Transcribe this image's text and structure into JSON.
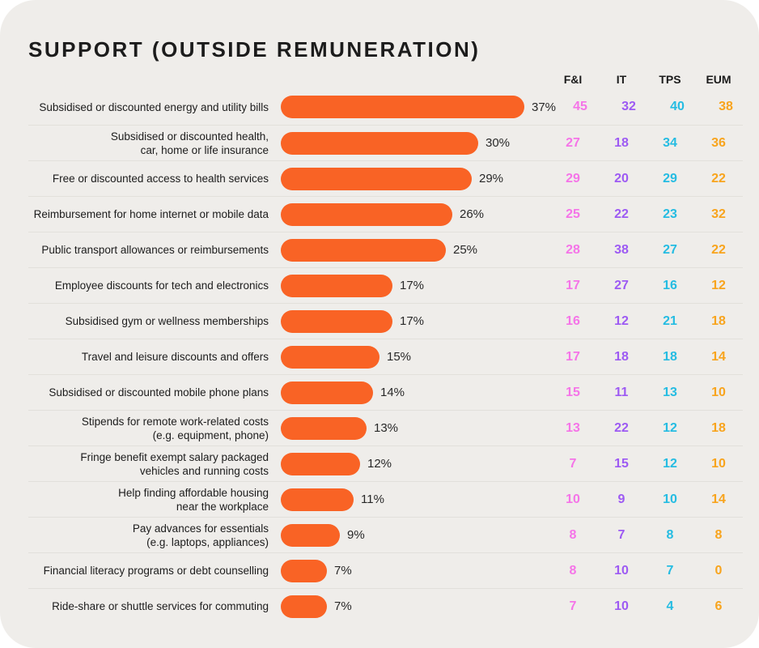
{
  "chart_data": {
    "type": "bar",
    "title": "SUPPORT (OUTSIDE REMUNERATION)",
    "unit": "%",
    "orientation": "horizontal",
    "bar_color": "#f96325",
    "xlim": [
      0,
      41
    ],
    "categories": [
      "Subsidised or discounted energy and utility bills",
      "Subsidised or discounted health,\ncar, home or life insurance",
      "Free or discounted access to health services",
      "Reimbursement for home internet or mobile data",
      "Public transport allowances or reimbursements",
      "Employee discounts for tech and electronics",
      "Subsidised gym or wellness memberships",
      "Travel and leisure discounts and offers",
      "Subsidised or discounted mobile phone plans",
      "Stipends for remote work-related costs\n(e.g. equipment, phone)",
      "Fringe benefit exempt salary packaged\nvehicles and running costs",
      "Help finding affordable housing\nnear the workplace",
      "Pay advances for essentials\n(e.g. laptops, appliances)",
      "Financial literacy programs or debt counselling",
      "Ride-share or shuttle services for commuting"
    ],
    "values": [
      37,
      30,
      29,
      26,
      25,
      17,
      17,
      15,
      14,
      13,
      12,
      11,
      9,
      7,
      7
    ],
    "series": [
      {
        "name": "F&I",
        "color": "#f574e8",
        "values": [
          45,
          27,
          29,
          25,
          28,
          17,
          16,
          17,
          15,
          13,
          7,
          10,
          8,
          8,
          7
        ]
      },
      {
        "name": "IT",
        "color": "#9d5af3",
        "values": [
          32,
          18,
          20,
          22,
          38,
          27,
          12,
          18,
          11,
          22,
          15,
          9,
          7,
          10,
          10
        ]
      },
      {
        "name": "TPS",
        "color": "#25bce2",
        "values": [
          40,
          34,
          29,
          23,
          27,
          16,
          21,
          18,
          13,
          12,
          12,
          10,
          8,
          7,
          4
        ]
      },
      {
        "name": "EUM",
        "color": "#f8a41d",
        "values": [
          38,
          36,
          22,
          32,
          22,
          12,
          18,
          14,
          10,
          18,
          10,
          14,
          8,
          0,
          6
        ]
      }
    ]
  }
}
